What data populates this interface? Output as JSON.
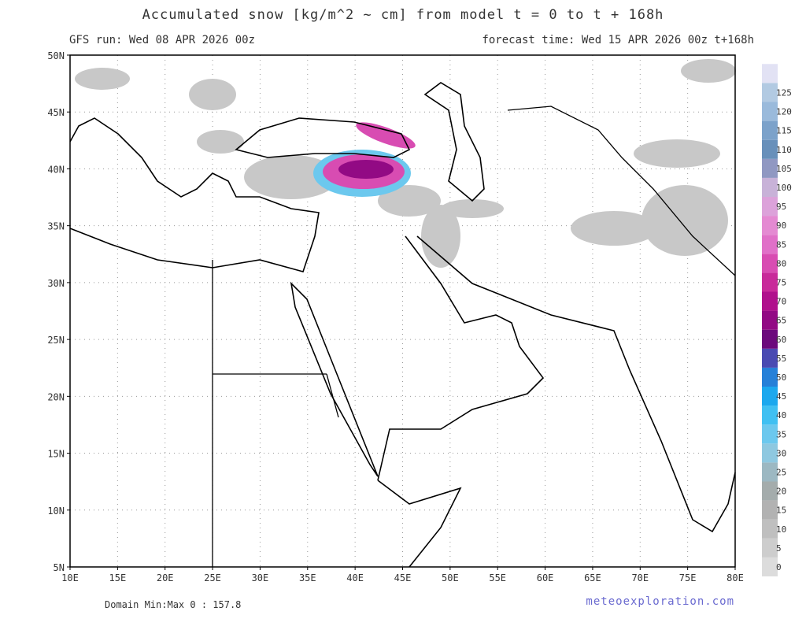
{
  "header": {
    "title": "Accumulated snow [kg/m^2 ~ cm] from model t = 0 to t + 168h",
    "run": "GFS run: Wed 08 APR 2026 00z",
    "forecast": "forecast time: Wed 15 APR 2026 00z  t+168h"
  },
  "map": {
    "lat_labels": [
      "50N",
      "45N",
      "40N",
      "35N",
      "30N",
      "25N",
      "20N",
      "15N",
      "10N",
      "5N"
    ],
    "lon_labels": [
      "10E",
      "15E",
      "20E",
      "25E",
      "30E",
      "35E",
      "40E",
      "45E",
      "50E",
      "55E",
      "60E",
      "65E",
      "70E",
      "75E",
      "80E"
    ]
  },
  "colorbar": {
    "labels": [
      0,
      5,
      10,
      15,
      20,
      25,
      30,
      35,
      40,
      45,
      50,
      55,
      60,
      65,
      70,
      75,
      80,
      85,
      90,
      95,
      100,
      105,
      110,
      115,
      120,
      125
    ],
    "colors": [
      "#dcdcdc",
      "#cdcdcd",
      "#bfbfbf",
      "#b2b2b2",
      "#a4acac",
      "#9cb8c2",
      "#8ec8e0",
      "#6cc8ee",
      "#40c0f2",
      "#1ca8ee",
      "#2680d8",
      "#4a4ab2",
      "#6c0a7c",
      "#920a84",
      "#b0108c",
      "#c82a9a",
      "#d84cb2",
      "#e070c8",
      "#e48ad2",
      "#dca2da",
      "#c8b2d8",
      "#9098c2",
      "#6890ba",
      "#7ca2ca",
      "#9abadb",
      "#b2cae2",
      "#e2e2f4"
    ]
  },
  "footer": {
    "domain": "Domain Min:Max 0 : 157.8",
    "source": "meteoexploration.com"
  }
}
